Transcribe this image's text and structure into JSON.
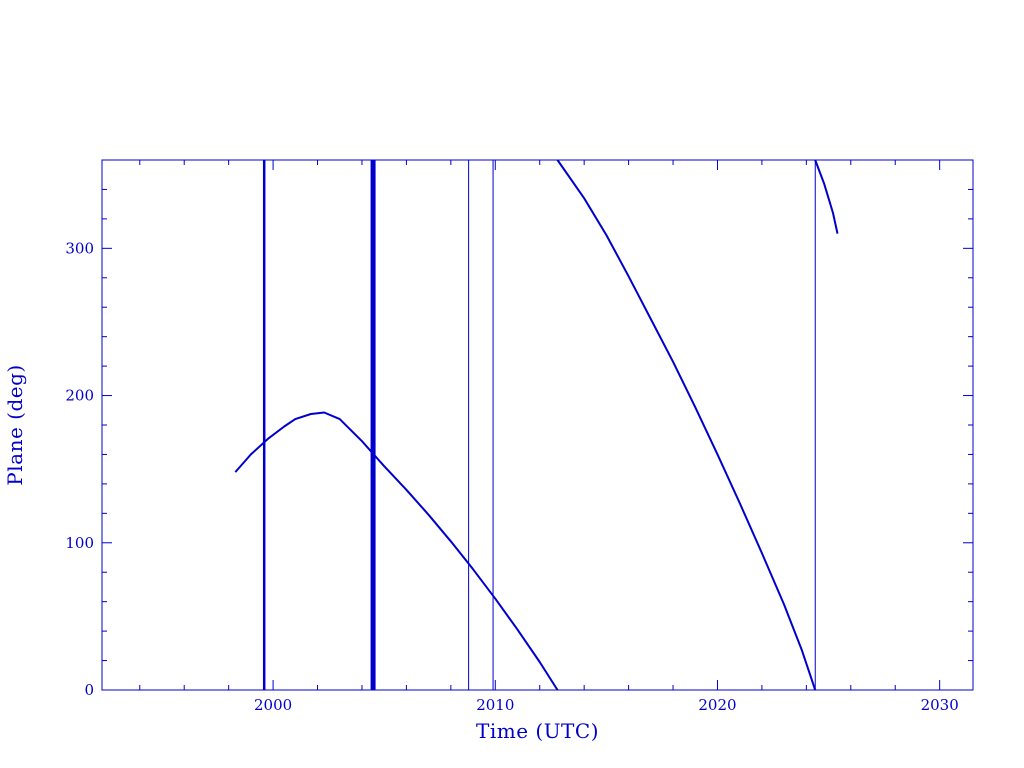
{
  "chart_data": {
    "type": "line",
    "title": "",
    "xlabel": "Time (UTC)",
    "ylabel": "Plane (deg)",
    "xlim": [
      1992.3,
      2031.5
    ],
    "ylim": [
      0,
      360
    ],
    "x_ticks": [
      2000,
      2010,
      2020,
      2030
    ],
    "y_ticks": [
      0,
      100,
      200,
      300
    ],
    "x_tick_labels": [
      "2000",
      "2010",
      "2020",
      "2030"
    ],
    "y_tick_labels": [
      "0",
      "100",
      "200",
      "300"
    ],
    "x_minor_step": 2,
    "y_minor_step": 20,
    "grid": false,
    "legend": "none",
    "color": "#0000cc",
    "series": [
      {
        "values": [
          [
            1998.3,
            148
          ],
          [
            1999.0,
            160
          ],
          [
            1999.8,
            171
          ],
          [
            2000.5,
            179
          ],
          [
            2001.0,
            184
          ],
          [
            2001.7,
            187.5
          ],
          [
            2002.3,
            188.5
          ],
          [
            2003.0,
            184
          ],
          [
            2004.0,
            169
          ],
          [
            2005.0,
            152
          ],
          [
            2006.0,
            136
          ],
          [
            2007.0,
            119
          ],
          [
            2008.0,
            101
          ],
          [
            2009.0,
            82
          ],
          [
            2010.0,
            62
          ],
          [
            2011.0,
            41
          ],
          [
            2012.0,
            19
          ],
          [
            2012.8,
            0
          ]
        ]
      },
      {
        "values": [
          [
            2012.8,
            360
          ],
          [
            2014.0,
            334
          ],
          [
            2015.0,
            309
          ],
          [
            2016.0,
            281
          ],
          [
            2017.0,
            252
          ],
          [
            2018.0,
            223
          ],
          [
            2019.0,
            192
          ],
          [
            2020.0,
            160
          ],
          [
            2021.0,
            127
          ],
          [
            2022.0,
            93
          ],
          [
            2023.0,
            58
          ],
          [
            2023.8,
            27
          ],
          [
            2024.4,
            0
          ]
        ]
      },
      {
        "values": [
          [
            2024.4,
            360
          ],
          [
            2024.8,
            344
          ],
          [
            2025.2,
            324
          ],
          [
            2025.4,
            310
          ]
        ]
      }
    ],
    "vertical_lines": [
      {
        "x": 1999.6,
        "weight": "medium"
      },
      {
        "x": 2004.5,
        "weight": "thick"
      },
      {
        "x": 2008.8,
        "weight": "thin"
      },
      {
        "x": 2009.9,
        "weight": "thin"
      },
      {
        "x": 2024.4,
        "weight": "thin"
      }
    ]
  }
}
